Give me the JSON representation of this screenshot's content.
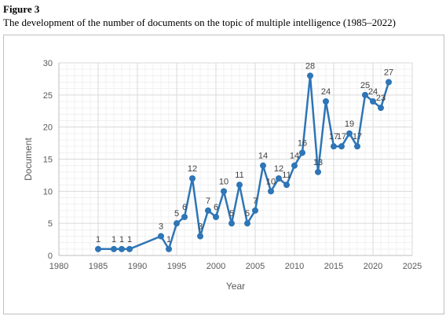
{
  "figure": {
    "label": "Figure 3",
    "caption": "The development of the number of documents on the topic of multiple intelligence (1985–2022)"
  },
  "chart_data": {
    "type": "line",
    "xlabel": "Year",
    "ylabel": "Document",
    "xlim": [
      1980,
      2025
    ],
    "ylim": [
      0,
      30
    ],
    "xticks": [
      1980,
      1985,
      1990,
      1995,
      2000,
      2005,
      2010,
      2015,
      2020,
      2025
    ],
    "yticks": [
      0,
      5,
      10,
      15,
      20,
      25,
      30
    ],
    "grid": true,
    "legend": "none",
    "series": [
      {
        "color": "#2e75b6",
        "x": [
          1985,
          1987,
          1988,
          1989,
          1993,
          1994,
          1995,
          1996,
          1997,
          1998,
          1999,
          2000,
          2001,
          2002,
          2003,
          2004,
          2005,
          2006,
          2007,
          2008,
          2009,
          2010,
          2011,
          2012,
          2013,
          2014,
          2015,
          2016,
          2017,
          2018,
          2019,
          2020,
          2021,
          2022
        ],
        "y": [
          1,
          1,
          1,
          1,
          3,
          1,
          5,
          6,
          12,
          3,
          7,
          6,
          10,
          5,
          11,
          5,
          7,
          14,
          10,
          12,
          11,
          14,
          16,
          28,
          13,
          24,
          17,
          17,
          19,
          17,
          25,
          24,
          23,
          27
        ],
        "labels": [
          "1",
          "1",
          "1",
          "1",
          "3",
          "1",
          "5",
          "6",
          "12",
          "3",
          "7",
          "6",
          "10",
          "5",
          "11",
          "5",
          "7",
          "14",
          "10",
          "12",
          "11",
          "14",
          "16",
          "28",
          "13",
          "24",
          "17",
          "17",
          "19",
          "17",
          "25",
          "24",
          "23",
          "27"
        ]
      }
    ]
  }
}
